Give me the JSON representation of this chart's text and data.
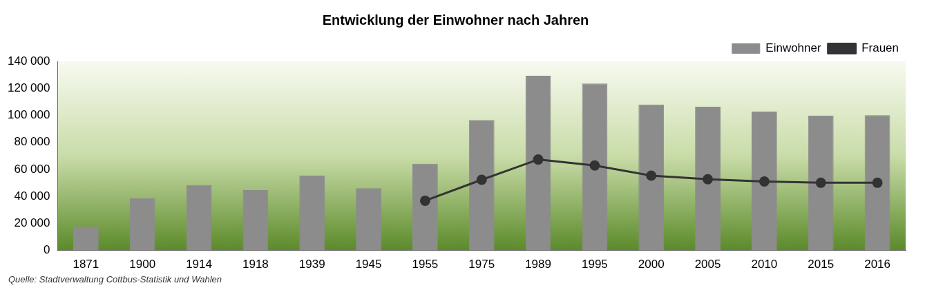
{
  "chart_data": {
    "type": "bar",
    "title": "Entwicklung der Einwohner nach Jahren",
    "categories": [
      "1871",
      "1900",
      "1914",
      "1918",
      "1939",
      "1945",
      "1955",
      "1975",
      "1989",
      "1995",
      "2000",
      "2005",
      "2010",
      "2015",
      "2016"
    ],
    "series": [
      {
        "name": "Einwohner",
        "color": "#8c8c8c",
        "values": [
          17700,
          38500,
          48300,
          44700,
          55400,
          46000,
          64200,
          96600,
          129300,
          123600,
          108000,
          106300,
          102800,
          99700,
          100100
        ]
      },
      {
        "name": "Frauen",
        "type": "line",
        "color": "#333333",
        "marker": "circle",
        "values": [
          null,
          null,
          null,
          null,
          null,
          null,
          36800,
          52300,
          67300,
          62900,
          55400,
          52700,
          51000,
          50100,
          50100
        ]
      }
    ],
    "ylim": [
      0,
      140000
    ],
    "yticks": [
      {
        "value": 0,
        "label": "0"
      },
      {
        "value": 20000,
        "label": "20 000"
      },
      {
        "value": 40000,
        "label": "40 000"
      },
      {
        "value": 60000,
        "label": "60 000"
      },
      {
        "value": 80000,
        "label": "80 000"
      },
      {
        "value": 100000,
        "label": "100 000"
      },
      {
        "value": 120000,
        "label": "120 000"
      },
      {
        "value": 140000,
        "label": "140 000"
      }
    ],
    "legend": "top right",
    "annotations": [
      "Quelle: Stadtverwaltung Cottbus-Statistik und Wahlen"
    ]
  }
}
